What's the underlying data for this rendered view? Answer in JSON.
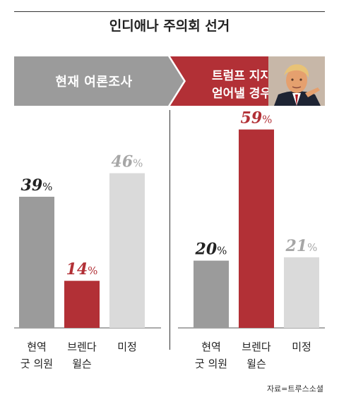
{
  "title": "인디애나 주의회 선거",
  "banner": {
    "left_label": "현재 여론조사",
    "right_line1": "트럼프 지지",
    "right_line2": "얻어낼 경우"
  },
  "colors": {
    "gray": "#9b9b9b",
    "red": "#b23036",
    "light": "#dadada"
  },
  "chart_data": [
    {
      "type": "bar",
      "panel": "현재 여론조사",
      "categories": [
        [
          "현역",
          "굿 의원"
        ],
        [
          "브렌다",
          "윌슨"
        ],
        [
          "미정"
        ]
      ],
      "values": [
        39,
        14,
        46
      ],
      "value_labels": [
        "39%",
        "14%",
        "46%"
      ],
      "colors": [
        "#9b9b9b",
        "#b23036",
        "#dadada"
      ],
      "ylim": [
        0,
        65
      ]
    },
    {
      "type": "bar",
      "panel": "트럼프 지지 얻어낼 경우",
      "categories": [
        [
          "현역",
          "굿 의원"
        ],
        [
          "브렌다",
          "윌슨"
        ],
        [
          "미정"
        ]
      ],
      "values": [
        20,
        59,
        21
      ],
      "value_labels": [
        "20%",
        "59%",
        "21%"
      ],
      "colors": [
        "#9b9b9b",
        "#b23036",
        "#dadada"
      ],
      "ylim": [
        0,
        65
      ]
    }
  ],
  "source": "자료=트루스소셜"
}
